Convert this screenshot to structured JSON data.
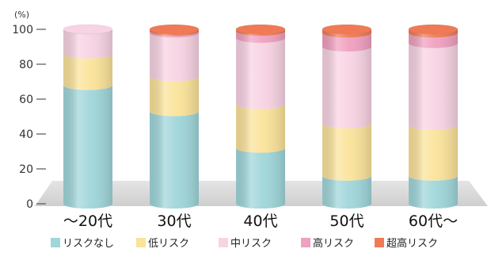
{
  "chart_data": {
    "type": "bar",
    "stacked": true,
    "style": "3d-cylinder",
    "y_unit": "(%)",
    "ylim": [
      0,
      100
    ],
    "yticks": [
      0,
      20,
      40,
      60,
      80,
      100
    ],
    "categories": [
      "〜20代",
      "30代",
      "40代",
      "50代",
      "60代〜"
    ],
    "series": [
      {
        "name": "リスクなし",
        "color": "#9fd6da",
        "values": [
          68,
          53,
          32,
          16,
          16
        ]
      },
      {
        "name": "低リスク",
        "color": "#fbe39a",
        "values": [
          18,
          20,
          25,
          30,
          29
        ]
      },
      {
        "name": "中リスク",
        "color": "#f8d3e3",
        "values": [
          14,
          25,
          38,
          44,
          47
        ]
      },
      {
        "name": "高リスク",
        "color": "#f0a0c0",
        "values": [
          0,
          1,
          4,
          8,
          6
        ]
      },
      {
        "name": "超高リスク",
        "color": "#ef7a55",
        "values": [
          0,
          1,
          1,
          2,
          2
        ]
      }
    ],
    "grid": false,
    "legend_position": "bottom"
  }
}
